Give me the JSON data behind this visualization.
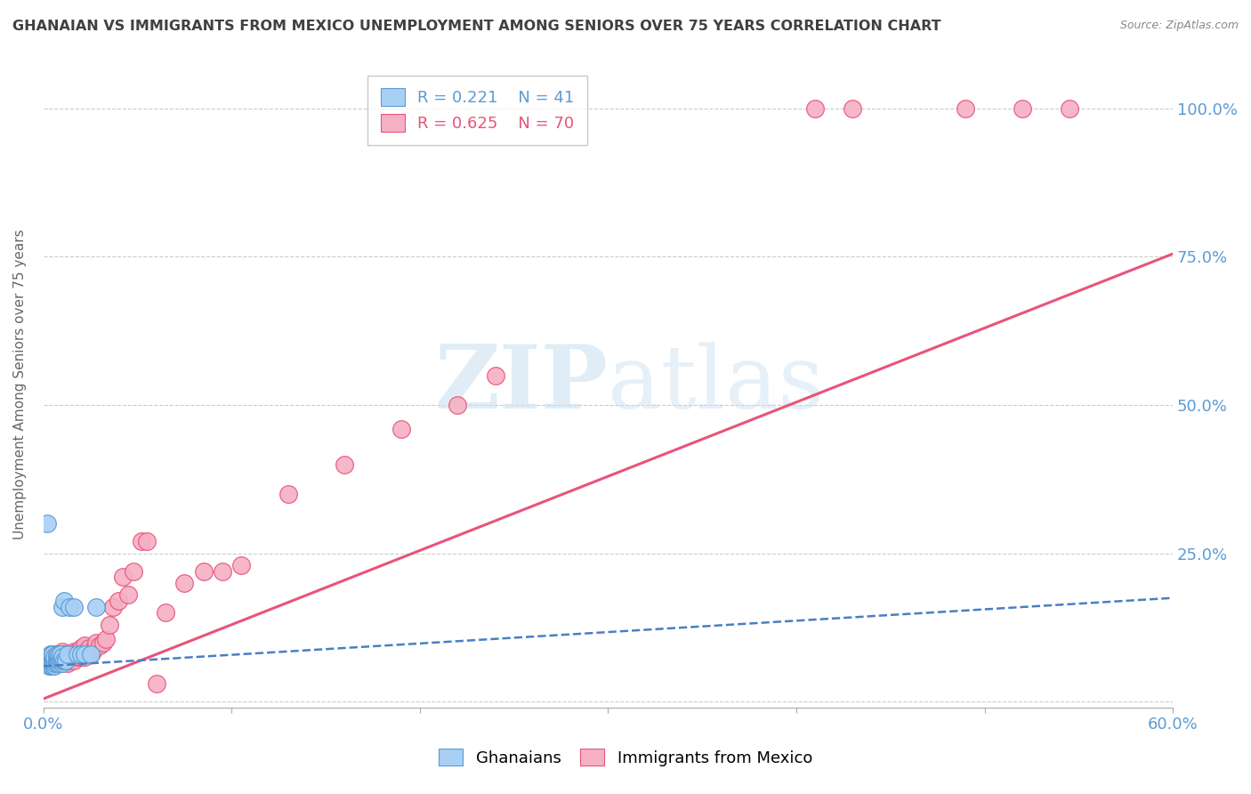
{
  "title": "GHANAIAN VS IMMIGRANTS FROM MEXICO UNEMPLOYMENT AMONG SENIORS OVER 75 YEARS CORRELATION CHART",
  "source": "Source: ZipAtlas.com",
  "ylabel": "Unemployment Among Seniors over 75 years",
  "xlim": [
    0.0,
    0.6
  ],
  "ylim": [
    -0.01,
    1.08
  ],
  "blue_color": "#A8D0F5",
  "pink_color": "#F5B0C5",
  "blue_edge_color": "#5B9BD5",
  "pink_edge_color": "#E8547A",
  "blue_trend_color": "#4A7FC1",
  "pink_trend_color": "#E8547A",
  "axis_label_color": "#5B9BD5",
  "title_color": "#404040",
  "legend_blue_r": "0.221",
  "legend_blue_n": "41",
  "legend_pink_r": "0.625",
  "legend_pink_n": "70",
  "blue_trend_x": [
    0.0,
    0.6
  ],
  "blue_trend_y": [
    0.06,
    0.175
  ],
  "pink_trend_x": [
    0.0,
    0.6
  ],
  "pink_trend_y": [
    0.005,
    0.755
  ],
  "ghanaians_x": [
    0.002,
    0.003,
    0.003,
    0.004,
    0.004,
    0.004,
    0.004,
    0.005,
    0.005,
    0.005,
    0.005,
    0.005,
    0.006,
    0.006,
    0.006,
    0.006,
    0.007,
    0.007,
    0.007,
    0.007,
    0.008,
    0.008,
    0.008,
    0.008,
    0.009,
    0.009,
    0.01,
    0.01,
    0.01,
    0.01,
    0.011,
    0.011,
    0.012,
    0.013,
    0.014,
    0.016,
    0.018,
    0.02,
    0.022,
    0.025,
    0.028
  ],
  "ghanaians_y": [
    0.3,
    0.06,
    0.07,
    0.06,
    0.07,
    0.07,
    0.08,
    0.06,
    0.065,
    0.07,
    0.075,
    0.08,
    0.06,
    0.065,
    0.07,
    0.075,
    0.065,
    0.07,
    0.075,
    0.08,
    0.065,
    0.07,
    0.075,
    0.08,
    0.07,
    0.08,
    0.065,
    0.07,
    0.075,
    0.16,
    0.07,
    0.17,
    0.07,
    0.08,
    0.16,
    0.16,
    0.08,
    0.08,
    0.08,
    0.08,
    0.16
  ],
  "mexico_x": [
    0.002,
    0.003,
    0.004,
    0.004,
    0.005,
    0.005,
    0.005,
    0.006,
    0.007,
    0.007,
    0.008,
    0.008,
    0.009,
    0.009,
    0.01,
    0.01,
    0.01,
    0.011,
    0.011,
    0.012,
    0.012,
    0.013,
    0.013,
    0.014,
    0.014,
    0.015,
    0.016,
    0.016,
    0.017,
    0.018,
    0.018,
    0.019,
    0.02,
    0.02,
    0.021,
    0.022,
    0.022,
    0.023,
    0.024,
    0.025,
    0.026,
    0.027,
    0.028,
    0.03,
    0.032,
    0.033,
    0.035,
    0.037,
    0.04,
    0.042,
    0.045,
    0.048,
    0.052,
    0.055,
    0.06,
    0.065,
    0.075,
    0.085,
    0.095,
    0.105,
    0.13,
    0.16,
    0.19,
    0.22,
    0.24,
    0.41,
    0.43,
    0.49,
    0.52,
    0.545
  ],
  "mexico_y": [
    0.07,
    0.07,
    0.06,
    0.08,
    0.06,
    0.07,
    0.08,
    0.07,
    0.065,
    0.075,
    0.065,
    0.075,
    0.065,
    0.075,
    0.065,
    0.075,
    0.085,
    0.07,
    0.08,
    0.07,
    0.08,
    0.065,
    0.08,
    0.07,
    0.08,
    0.075,
    0.07,
    0.085,
    0.08,
    0.075,
    0.085,
    0.08,
    0.075,
    0.09,
    0.085,
    0.075,
    0.095,
    0.085,
    0.09,
    0.08,
    0.085,
    0.09,
    0.1,
    0.095,
    0.1,
    0.105,
    0.13,
    0.16,
    0.17,
    0.21,
    0.18,
    0.22,
    0.27,
    0.27,
    0.03,
    0.15,
    0.2,
    0.22,
    0.22,
    0.23,
    0.35,
    0.4,
    0.46,
    0.5,
    0.55,
    1.0,
    1.0,
    1.0,
    1.0,
    1.0
  ]
}
